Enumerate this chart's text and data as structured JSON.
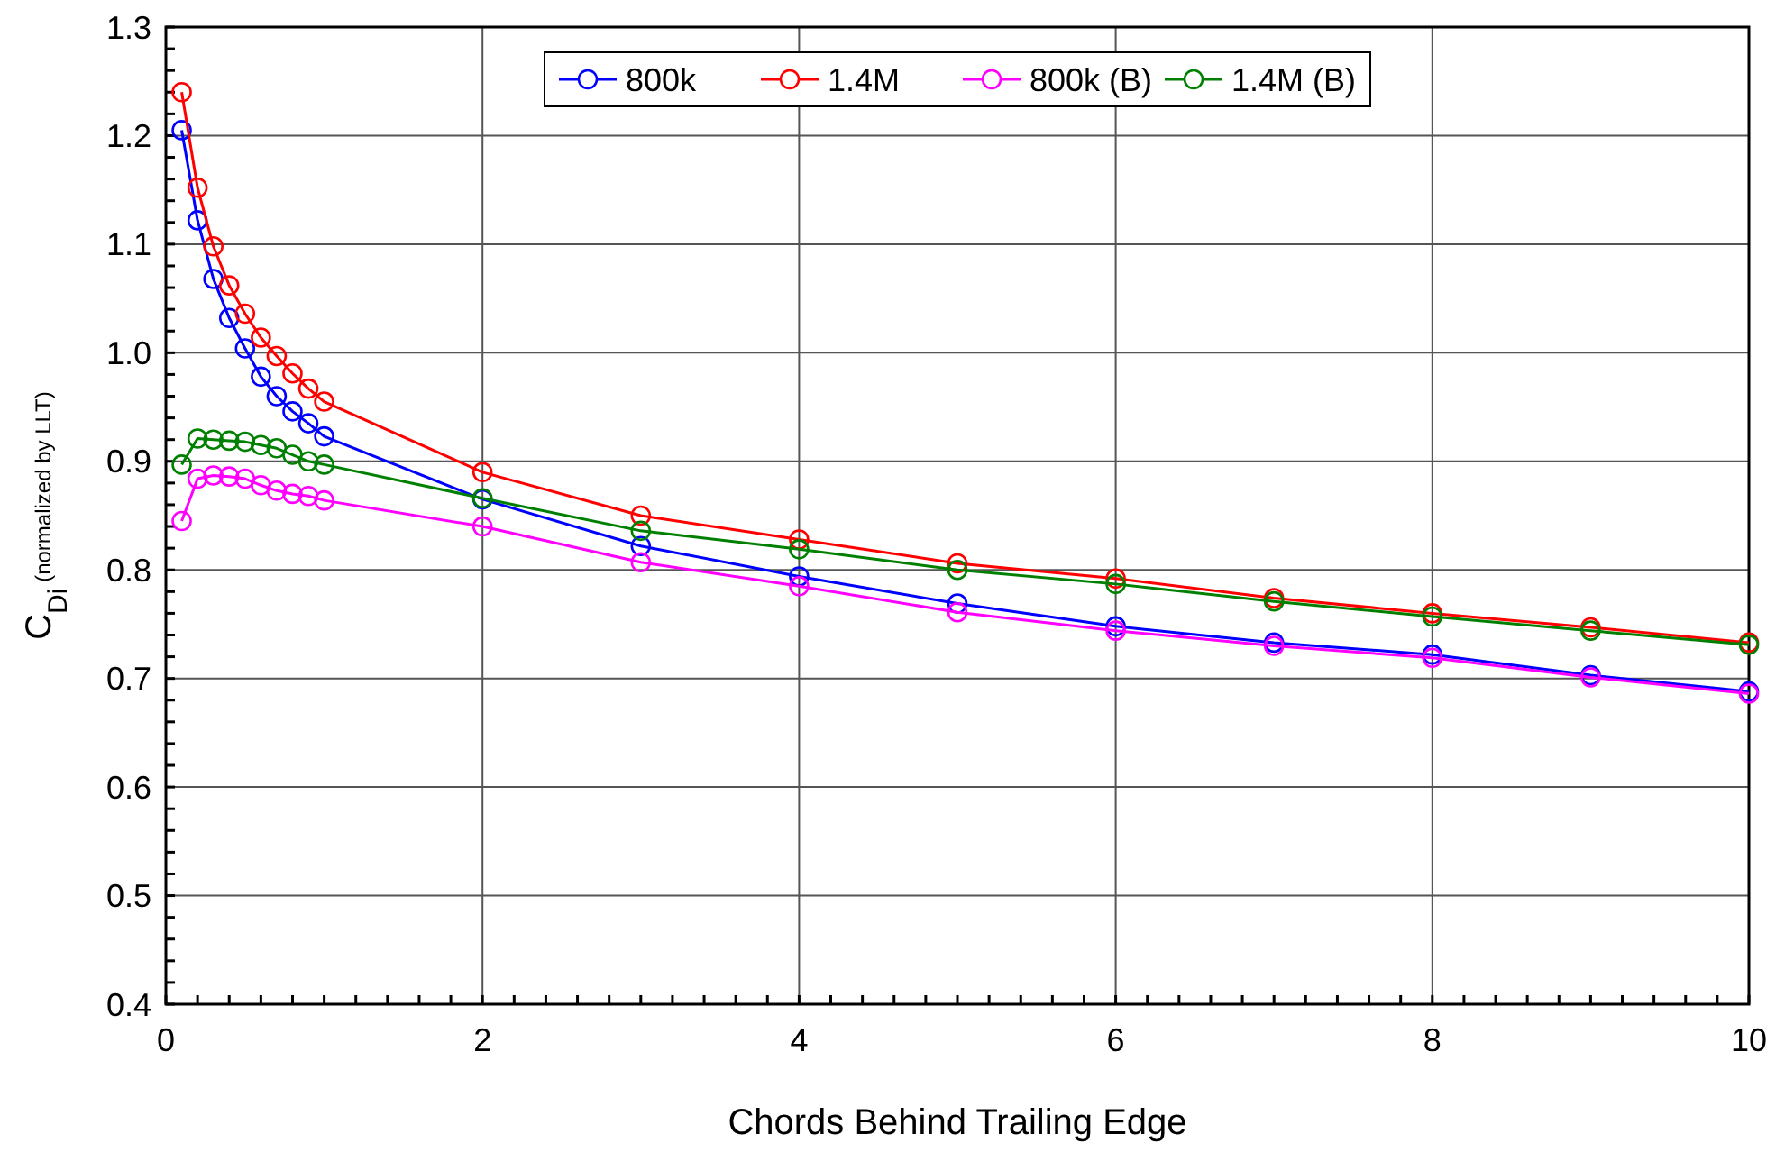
{
  "chart_data": {
    "type": "line",
    "xlabel": "Chords Behind Trailing Edge",
    "ylabel": "C$_{Di}$ (normalized by LLT)",
    "x": [
      0.1,
      0.2,
      0.3,
      0.4,
      0.5,
      0.6,
      0.7,
      0.8,
      0.9,
      1,
      2,
      3,
      4,
      5,
      6,
      7,
      8,
      9,
      10
    ],
    "series": [
      {
        "name": "800k",
        "color": "#0000ff",
        "marker": "circle",
        "values": [
          1.205,
          1.122,
          1.068,
          1.032,
          1.004,
          0.978,
          0.96,
          0.946,
          0.935,
          0.923,
          0.865,
          0.822,
          0.794,
          0.769,
          0.748,
          0.733,
          0.722,
          0.703,
          0.688
        ]
      },
      {
        "name": "1.4M",
        "color": "#ff0000",
        "marker": "circle",
        "values": [
          1.24,
          1.152,
          1.098,
          1.062,
          1.036,
          1.014,
          0.997,
          0.981,
          0.967,
          0.955,
          0.89,
          0.85,
          0.828,
          0.806,
          0.792,
          0.774,
          0.76,
          0.747,
          0.733
        ]
      },
      {
        "name": "800k (B)",
        "color": "#ff00ff",
        "marker": "circle",
        "values": [
          0.845,
          0.884,
          0.887,
          0.886,
          0.884,
          0.878,
          0.873,
          0.87,
          0.868,
          0.864,
          0.84,
          0.807,
          0.785,
          0.761,
          0.744,
          0.73,
          0.719,
          0.701,
          0.686
        ]
      },
      {
        "name": "1.4M (B)",
        "color": "#008000",
        "marker": "circle",
        "values": [
          0.897,
          0.921,
          0.92,
          0.919,
          0.918,
          0.915,
          0.912,
          0.906,
          0.9,
          0.897,
          0.866,
          0.836,
          0.819,
          0.8,
          0.787,
          0.771,
          0.757,
          0.744,
          0.731
        ]
      }
    ],
    "xlim": [
      0,
      10
    ],
    "xticks": [
      0,
      2,
      4,
      6,
      8,
      10
    ],
    "ylim": [
      0.4,
      1.3
    ],
    "yticks": [
      0.4,
      0.5,
      0.6,
      0.7,
      0.8,
      0.9,
      {
        "value": 1,
        "label": "1.0"
      },
      1.1,
      1.2,
      1.3
    ],
    "grid": true,
    "legend": "top",
    "line_style": "solid"
  }
}
